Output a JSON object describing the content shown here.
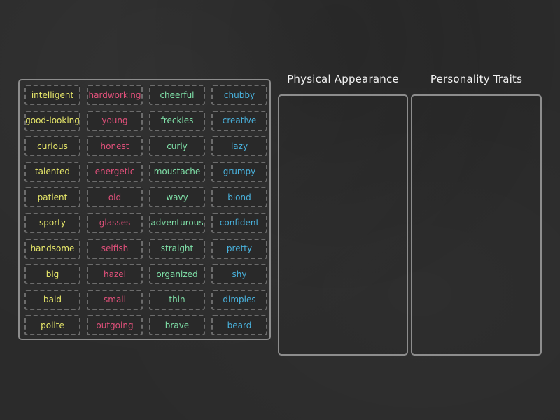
{
  "colors": {
    "yellow": "#e8e86a",
    "pink": "#e0507a",
    "green": "#7fe0a8",
    "blue": "#49b2dd"
  },
  "zones": [
    {
      "title": "Physical Appearance"
    },
    {
      "title": "Personality Traits"
    }
  ],
  "tiles": [
    {
      "label": "intelligent",
      "color": "yellow"
    },
    {
      "label": "hardworking",
      "color": "pink"
    },
    {
      "label": "cheerful",
      "color": "green"
    },
    {
      "label": "chubby",
      "color": "blue"
    },
    {
      "label": "good-looking",
      "color": "yellow"
    },
    {
      "label": "young",
      "color": "pink"
    },
    {
      "label": "freckles",
      "color": "green"
    },
    {
      "label": "creative",
      "color": "blue"
    },
    {
      "label": "curious",
      "color": "yellow"
    },
    {
      "label": "honest",
      "color": "pink"
    },
    {
      "label": "curly",
      "color": "green"
    },
    {
      "label": "lazy",
      "color": "blue"
    },
    {
      "label": "talented",
      "color": "yellow"
    },
    {
      "label": "energetic",
      "color": "pink"
    },
    {
      "label": "moustache",
      "color": "green"
    },
    {
      "label": "grumpy",
      "color": "blue"
    },
    {
      "label": "patient",
      "color": "yellow"
    },
    {
      "label": "old",
      "color": "pink"
    },
    {
      "label": "wavy",
      "color": "green"
    },
    {
      "label": "blond",
      "color": "blue"
    },
    {
      "label": "sporty",
      "color": "yellow"
    },
    {
      "label": "glasses",
      "color": "pink"
    },
    {
      "label": "adventurous",
      "color": "green"
    },
    {
      "label": "confident",
      "color": "blue"
    },
    {
      "label": "handsome",
      "color": "yellow"
    },
    {
      "label": "selfish",
      "color": "pink"
    },
    {
      "label": "straight",
      "color": "green"
    },
    {
      "label": "pretty",
      "color": "blue"
    },
    {
      "label": "big",
      "color": "yellow"
    },
    {
      "label": "hazel",
      "color": "pink"
    },
    {
      "label": "organized",
      "color": "green"
    },
    {
      "label": "shy",
      "color": "blue"
    },
    {
      "label": "bald",
      "color": "yellow"
    },
    {
      "label": "small",
      "color": "pink"
    },
    {
      "label": "thin",
      "color": "green"
    },
    {
      "label": "dimples",
      "color": "blue"
    },
    {
      "label": "polite",
      "color": "yellow"
    },
    {
      "label": "outgoing",
      "color": "pink"
    },
    {
      "label": "brave",
      "color": "green"
    },
    {
      "label": "beard",
      "color": "blue"
    }
  ]
}
